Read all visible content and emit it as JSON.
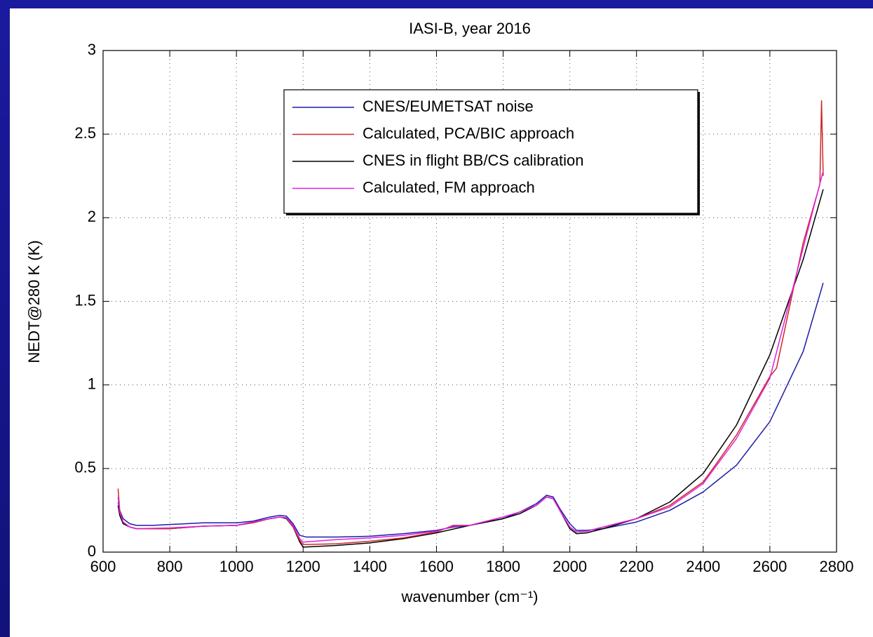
{
  "chart_data": {
    "type": "line",
    "title": "IASI-B, year 2016",
    "xlabel": "wavenumber (cm⁻¹)",
    "ylabel": "NEDT@280 K (K)",
    "xlim": [
      600,
      2800
    ],
    "ylim": [
      0,
      3
    ],
    "xticks": [
      600,
      800,
      1000,
      1200,
      1400,
      1600,
      1800,
      2000,
      2200,
      2400,
      2600,
      2800
    ],
    "yticks": [
      0,
      0.5,
      1,
      1.5,
      2,
      2.5,
      3
    ],
    "grid": true,
    "legend": "top-center",
    "series": [
      {
        "name": "CNES/EUMETSAT noise",
        "color": "#1c1ca8",
        "x": [
          645,
          650,
          660,
          680,
          700,
          750,
          800,
          900,
          1000,
          1050,
          1100,
          1130,
          1150,
          1170,
          1190,
          1210,
          1250,
          1300,
          1400,
          1500,
          1600,
          1650,
          1700,
          1750,
          1800,
          1850,
          1900,
          1930,
          1950,
          1970,
          2000,
          2020,
          2050,
          2100,
          2200,
          2300,
          2400,
          2500,
          2600,
          2700,
          2760
        ],
        "values": [
          0.3,
          0.25,
          0.2,
          0.17,
          0.16,
          0.16,
          0.165,
          0.175,
          0.175,
          0.185,
          0.21,
          0.22,
          0.215,
          0.17,
          0.1,
          0.09,
          0.09,
          0.09,
          0.095,
          0.11,
          0.13,
          0.15,
          0.16,
          0.18,
          0.2,
          0.24,
          0.29,
          0.34,
          0.33,
          0.26,
          0.17,
          0.13,
          0.13,
          0.14,
          0.18,
          0.25,
          0.36,
          0.52,
          0.78,
          1.2,
          1.61
        ]
      },
      {
        "name": "Calculated, PCA/BIC approach",
        "color": "#d02828",
        "x": [
          645,
          650,
          660,
          680,
          700,
          750,
          800,
          900,
          1000,
          1050,
          1100,
          1130,
          1150,
          1170,
          1190,
          1200,
          1300,
          1400,
          1500,
          1600,
          1650,
          1700,
          1800,
          1850,
          1900,
          1930,
          1950,
          1970,
          2000,
          2020,
          2050,
          2100,
          2200,
          2300,
          2400,
          2440,
          2500,
          2600,
          2620,
          2700,
          2750,
          2755,
          2760
        ],
        "values": [
          0.38,
          0.25,
          0.18,
          0.15,
          0.14,
          0.14,
          0.14,
          0.155,
          0.16,
          0.175,
          0.2,
          0.21,
          0.205,
          0.15,
          0.07,
          0.045,
          0.05,
          0.065,
          0.085,
          0.12,
          0.16,
          0.16,
          0.21,
          0.24,
          0.28,
          0.33,
          0.32,
          0.25,
          0.15,
          0.12,
          0.125,
          0.15,
          0.2,
          0.28,
          0.42,
          0.53,
          0.7,
          1.05,
          1.1,
          1.85,
          2.2,
          2.7,
          2.25
        ]
      },
      {
        "name": "CNES in flight BB/CS calibration",
        "color": "#000000",
        "x": [
          645,
          650,
          660,
          680,
          700,
          800,
          900,
          1000,
          1100,
          1130,
          1150,
          1170,
          1190,
          1200,
          1300,
          1400,
          1500,
          1600,
          1700,
          1800,
          1850,
          1900,
          1930,
          1950,
          1970,
          2000,
          2020,
          2050,
          2100,
          2200,
          2300,
          2400,
          2500,
          2600,
          2700,
          2760
        ],
        "values": [
          0.28,
          0.22,
          0.17,
          0.15,
          0.14,
          0.14,
          0.155,
          0.16,
          0.2,
          0.21,
          0.2,
          0.15,
          0.06,
          0.03,
          0.04,
          0.055,
          0.08,
          0.115,
          0.16,
          0.2,
          0.23,
          0.28,
          0.33,
          0.32,
          0.25,
          0.14,
          0.11,
          0.115,
          0.14,
          0.2,
          0.3,
          0.47,
          0.76,
          1.18,
          1.75,
          2.17
        ]
      },
      {
        "name": "Calculated, FM approach",
        "color": "#e020e0",
        "x": [
          645,
          650,
          660,
          680,
          700,
          800,
          900,
          1000,
          1100,
          1130,
          1150,
          1170,
          1190,
          1200,
          1300,
          1400,
          1500,
          1600,
          1650,
          1700,
          1800,
          1850,
          1900,
          1930,
          1950,
          1970,
          2000,
          2020,
          2050,
          2100,
          2200,
          2300,
          2400,
          2500,
          2600,
          2700,
          2760
        ],
        "values": [
          0.33,
          0.24,
          0.18,
          0.15,
          0.14,
          0.145,
          0.155,
          0.16,
          0.2,
          0.21,
          0.205,
          0.16,
          0.08,
          0.06,
          0.075,
          0.085,
          0.1,
          0.125,
          0.155,
          0.16,
          0.21,
          0.24,
          0.28,
          0.33,
          0.32,
          0.25,
          0.15,
          0.12,
          0.125,
          0.15,
          0.2,
          0.27,
          0.41,
          0.68,
          1.04,
          1.82,
          2.28
        ]
      }
    ]
  }
}
